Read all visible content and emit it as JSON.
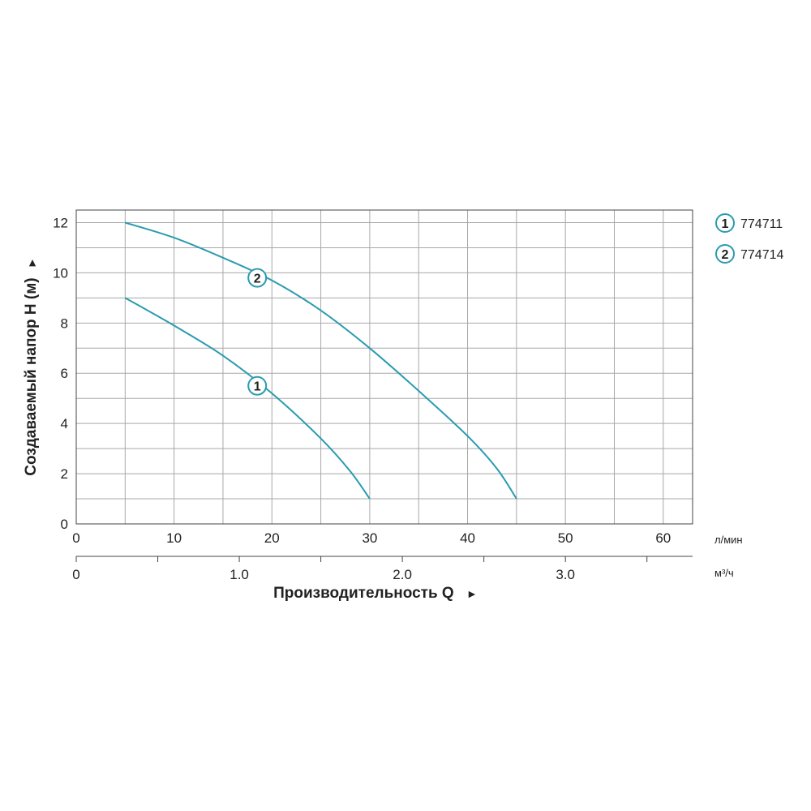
{
  "chart_data": {
    "type": "line",
    "ylabel": "Создаваемый напор H (м)",
    "ylabel_arrow": "►",
    "xlabel": "Производительность Q",
    "xlabel_arrow": "►",
    "x_unit": "л/мин",
    "x2_unit": "м³/ч",
    "xlim": [
      0,
      63
    ],
    "ylim": [
      0,
      12.5
    ],
    "x_ticks": [
      0,
      10,
      20,
      30,
      40,
      50,
      60
    ],
    "x_tick_labels": [
      "0",
      "10",
      "20",
      "30",
      "40",
      "50",
      "60"
    ],
    "y_ticks": [
      0,
      2,
      4,
      6,
      8,
      10,
      12
    ],
    "y_tick_labels": [
      "0",
      "2",
      "4",
      "6",
      "8",
      "10",
      "12"
    ],
    "x2_ticks": [
      0,
      1.0,
      2.0,
      3.0
    ],
    "x2_tick_labels": [
      "0",
      "1.0",
      "2.0",
      "3.0"
    ],
    "x2_minor_ticks": [
      0.5,
      1.5,
      2.5,
      3.5
    ],
    "x_grid_step": 5,
    "y_grid_step": 1,
    "grid": true,
    "legend_position": "right",
    "line_color": "#2a9bb0",
    "series": [
      {
        "name": "774711",
        "marker": "1",
        "marker_at": [
          18.5,
          5.5
        ],
        "x": [
          5,
          10,
          15,
          20,
          25,
          28,
          30
        ],
        "y": [
          9.0,
          7.9,
          6.7,
          5.2,
          3.4,
          2.1,
          1.0
        ]
      },
      {
        "name": "774714",
        "marker": "2",
        "marker_at": [
          18.5,
          9.8
        ],
        "x": [
          5,
          10,
          15,
          20,
          25,
          30,
          35,
          40,
          43,
          45
        ],
        "y": [
          12.0,
          11.4,
          10.6,
          9.7,
          8.5,
          7.0,
          5.3,
          3.5,
          2.2,
          1.0
        ]
      }
    ]
  }
}
